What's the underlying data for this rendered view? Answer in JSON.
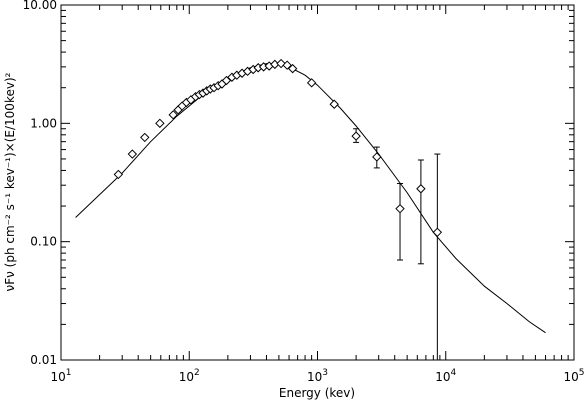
{
  "chart_data": {
    "type": "scatter",
    "title": "",
    "xlabel": "Energy (kev)",
    "ylabel": "νFν (ph cm⁻² s⁻¹ kev⁻¹)×(E/100kev)²",
    "x_scale": "log",
    "y_scale": "log",
    "xlim": [
      10,
      100000
    ],
    "ylim": [
      0.01,
      10
    ],
    "x_tick_labels": [
      {
        "value": 10,
        "base": "10",
        "exp": "1"
      },
      {
        "value": 100,
        "base": "10",
        "exp": "2"
      },
      {
        "value": 1000,
        "base": "10",
        "exp": "3"
      },
      {
        "value": 10000,
        "base": "10",
        "exp": "4"
      },
      {
        "value": 100000,
        "base": "10",
        "exp": "5"
      }
    ],
    "y_tick_labels": [
      {
        "value": 0.01,
        "label": "0.01"
      },
      {
        "value": 0.1,
        "label": "0.10"
      },
      {
        "value": 1,
        "label": "1.00"
      },
      {
        "value": 10,
        "label": "10.00"
      }
    ],
    "marker": "diamond",
    "points": [
      {
        "x": 28,
        "y": 0.37
      },
      {
        "x": 36,
        "y": 0.55
      },
      {
        "x": 45,
        "y": 0.76
      },
      {
        "x": 59,
        "y": 1.0
      },
      {
        "x": 75,
        "y": 1.18
      },
      {
        "x": 82,
        "y": 1.3
      },
      {
        "x": 88,
        "y": 1.4
      },
      {
        "x": 95,
        "y": 1.5
      },
      {
        "x": 103,
        "y": 1.58
      },
      {
        "x": 112,
        "y": 1.68
      },
      {
        "x": 120,
        "y": 1.75
      },
      {
        "x": 128,
        "y": 1.8
      },
      {
        "x": 137,
        "y": 1.88
      },
      {
        "x": 146,
        "y": 1.95
      },
      {
        "x": 156,
        "y": 2.0
      },
      {
        "x": 168,
        "y": 2.08
      },
      {
        "x": 180,
        "y": 2.15
      },
      {
        "x": 195,
        "y": 2.3
      },
      {
        "x": 215,
        "y": 2.45
      },
      {
        "x": 235,
        "y": 2.55
      },
      {
        "x": 258,
        "y": 2.65
      },
      {
        "x": 285,
        "y": 2.75
      },
      {
        "x": 315,
        "y": 2.85
      },
      {
        "x": 345,
        "y": 2.95
      },
      {
        "x": 380,
        "y": 3.0
      },
      {
        "x": 420,
        "y": 3.05
      },
      {
        "x": 465,
        "y": 3.15
      },
      {
        "x": 520,
        "y": 3.2
      },
      {
        "x": 580,
        "y": 3.1
      },
      {
        "x": 640,
        "y": 2.9
      },
      {
        "x": 900,
        "y": 2.2
      },
      {
        "x": 1350,
        "y": 1.45
      },
      {
        "x": 2000,
        "y": 0.78,
        "err": [
          0.69,
          0.9
        ]
      },
      {
        "x": 2900,
        "y": 0.52,
        "err": [
          0.42,
          0.63
        ]
      },
      {
        "x": 4400,
        "y": 0.19,
        "err": [
          0.07,
          0.31
        ]
      },
      {
        "x": 6400,
        "y": 0.28,
        "err": [
          0.065,
          0.49
        ]
      },
      {
        "x": 8600,
        "y": 0.12,
        "err": [
          0.0,
          0.55
        ]
      }
    ],
    "model_curve": {
      "type": "line",
      "x": [
        13,
        20,
        30,
        50,
        80,
        120,
        200,
        300,
        400,
        500,
        600,
        800,
        1000,
        1500,
        2000,
        3000,
        5000,
        8000,
        12000,
        20000,
        30000,
        45000,
        60000
      ],
      "y": [
        0.16,
        0.25,
        0.38,
        0.7,
        1.15,
        1.65,
        2.4,
        2.95,
        3.2,
        3.2,
        3.0,
        2.55,
        2.1,
        1.35,
        0.95,
        0.55,
        0.26,
        0.12,
        0.072,
        0.042,
        0.03,
        0.021,
        0.017
      ]
    },
    "grid": false,
    "legend": "none"
  }
}
